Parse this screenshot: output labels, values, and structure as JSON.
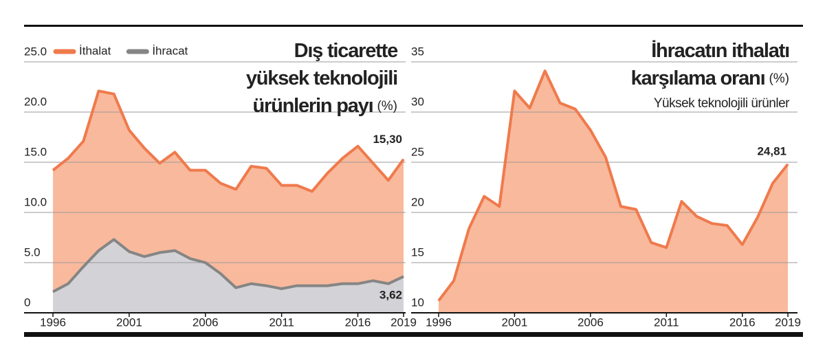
{
  "chart_data": [
    {
      "type": "area",
      "title": [
        "Dış ticarette",
        "yüksek teknolojili",
        "ürünlerin payı"
      ],
      "unit": "(%)",
      "x": [
        1996,
        1997,
        1998,
        1999,
        2000,
        2001,
        2002,
        2003,
        2004,
        2005,
        2006,
        2007,
        2008,
        2009,
        2010,
        2011,
        2012,
        2013,
        2014,
        2015,
        2016,
        2017,
        2018,
        2019
      ],
      "xlim": [
        1996,
        2019
      ],
      "xticks": [
        1996,
        2001,
        2006,
        2011,
        2016,
        2019
      ],
      "ylim": [
        0,
        25
      ],
      "yticks": [
        0,
        {
          "value": 5,
          "label": "5.0"
        },
        {
          "value": 10,
          "label": "10.0"
        },
        {
          "value": 15,
          "label": "15.0"
        },
        {
          "value": 20,
          "label": "20.0"
        },
        {
          "value": 25,
          "label": "25.0"
        }
      ],
      "grid": true,
      "legend": "top-left",
      "series": [
        {
          "name": "İthalat",
          "color": "#ef7a4c",
          "fill": "#f9b99c",
          "values": [
            14.2,
            15.4,
            17.1,
            22.1,
            21.8,
            18.2,
            16.4,
            14.9,
            16.0,
            14.2,
            14.2,
            12.9,
            12.3,
            14.6,
            14.4,
            12.7,
            12.7,
            12.1,
            13.9,
            15.4,
            16.6,
            14.9,
            13.2,
            15.3
          ],
          "value_labels": {
            "23": "15,30"
          }
        },
        {
          "name": "İhracat",
          "color": "#858585",
          "fill": "#d3d2d6",
          "values": [
            2.1,
            2.9,
            4.6,
            6.2,
            7.3,
            6.1,
            5.6,
            6.0,
            6.2,
            5.4,
            5.0,
            3.9,
            2.5,
            2.9,
            2.7,
            2.4,
            2.7,
            2.7,
            2.7,
            2.9,
            2.9,
            3.2,
            2.9,
            3.62
          ],
          "value_labels": {
            "23": "3,62"
          }
        }
      ]
    },
    {
      "type": "area",
      "title": [
        "İhracatın ithalatı",
        "karşılama oranı"
      ],
      "unit": "(%)",
      "subtitle": "Yüksek teknolojili ürünler",
      "x": [
        1996,
        1997,
        1998,
        1999,
        2000,
        2001,
        2002,
        2003,
        2004,
        2005,
        2006,
        2007,
        2008,
        2009,
        2010,
        2011,
        2012,
        2013,
        2014,
        2015,
        2016,
        2017,
        2018,
        2019
      ],
      "xlim": [
        1996,
        2019
      ],
      "xticks": [
        1996,
        2001,
        2006,
        2011,
        2016,
        2019
      ],
      "ylim": [
        10,
        35
      ],
      "yticks": [
        10,
        15,
        20,
        25,
        30,
        35
      ],
      "grid": true,
      "series": [
        {
          "color": "#ef7a4c",
          "fill": "#f9b99c",
          "values": [
            11.2,
            13.2,
            18.4,
            21.6,
            20.6,
            32.1,
            30.4,
            34.1,
            30.9,
            30.3,
            28.2,
            25.5,
            20.6,
            20.3,
            17.0,
            16.5,
            21.1,
            19.6,
            18.9,
            18.7,
            16.8,
            19.5,
            22.9,
            24.81
          ],
          "value_labels": {
            "23": "24,81"
          }
        }
      ]
    }
  ]
}
